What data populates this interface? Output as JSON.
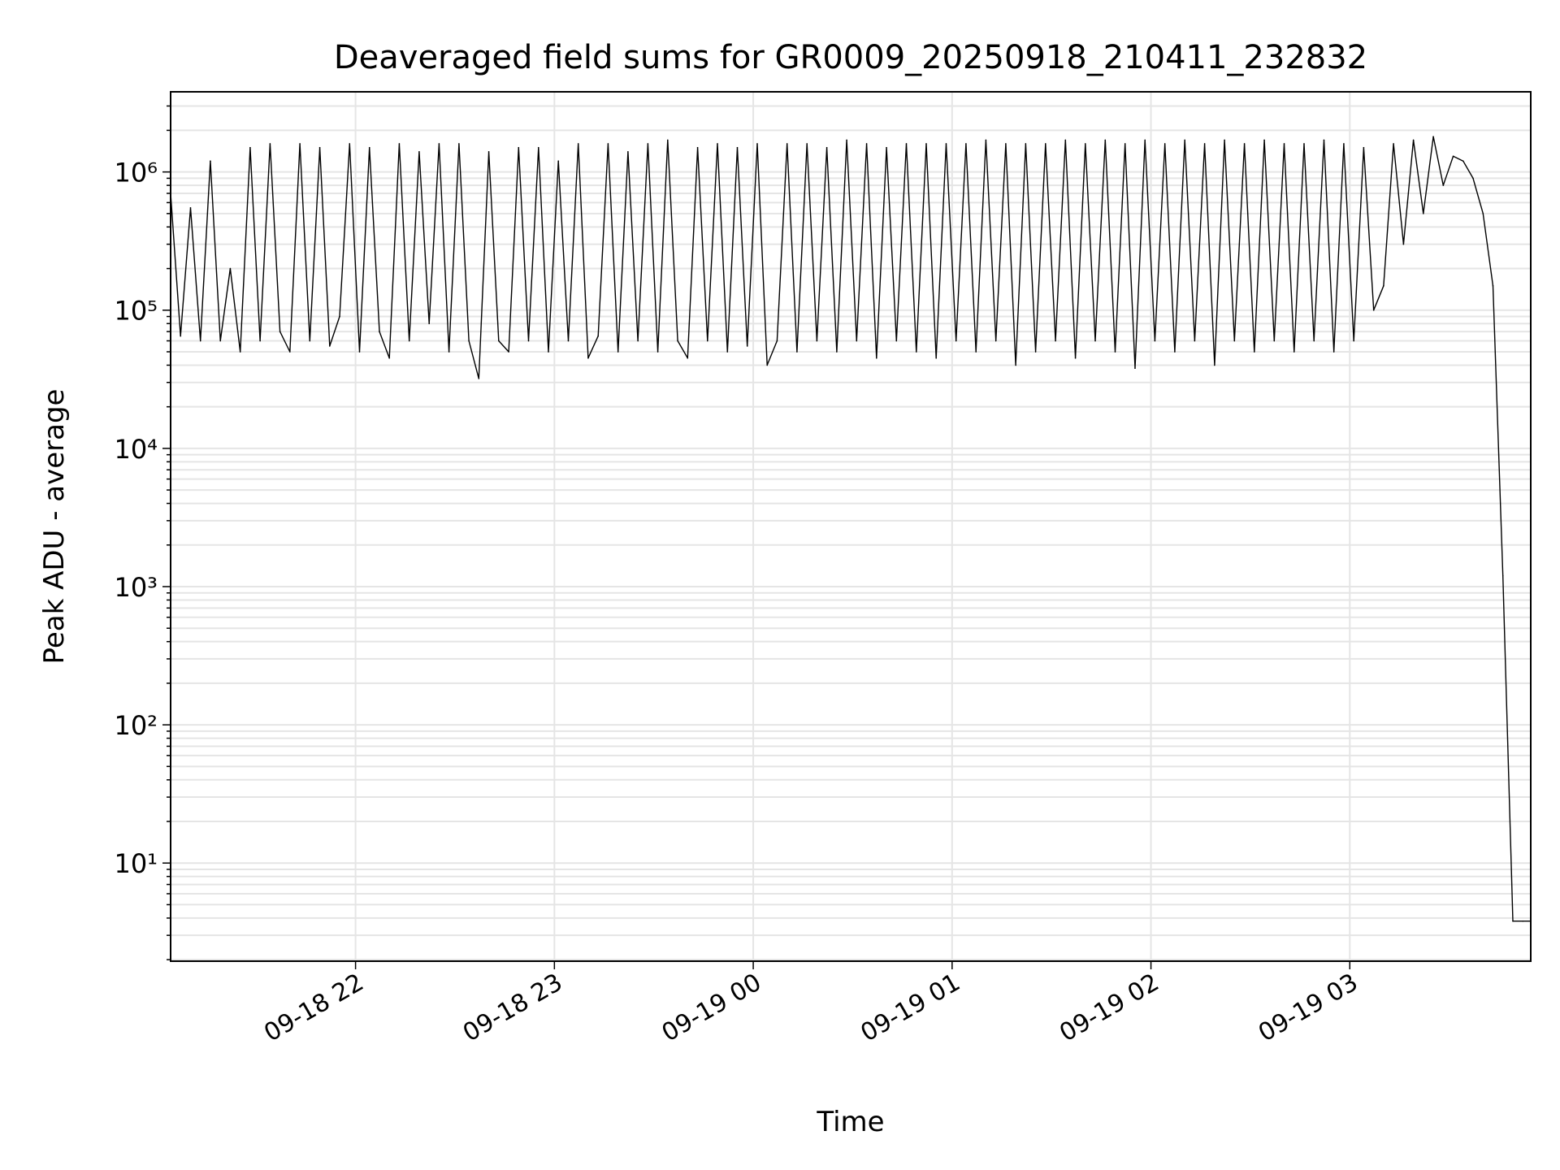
{
  "chart_data": {
    "type": "line",
    "title": "Deaveraged field sums for GR0009_20250918_210411_232832",
    "xlabel": "Time",
    "ylabel": "Peak ADU - average",
    "x_units": "hours since 2025-09-18 00:00",
    "xlim": [
      21.07,
      27.91
    ],
    "yscale": "log",
    "ylim": [
      1.95,
      3800000
    ],
    "grid": true,
    "line_color": "#000000",
    "grid_color": "#e5e5e5",
    "x_ticks": [
      22,
      23,
      24,
      25,
      26,
      27
    ],
    "x_tick_labels": [
      "09-18 22",
      "09-18 23",
      "09-19 00",
      "09-19 01",
      "09-19 02",
      "09-19 03"
    ],
    "y_ticks": [
      10,
      100,
      1000,
      10000,
      100000,
      1000000
    ],
    "y_tick_labels": [
      "10¹",
      "10²",
      "10³",
      "10⁴",
      "10⁵",
      "10⁶"
    ],
    "series": [
      {
        "name": "deaveraged field sum",
        "x_start": 21.07,
        "x_step": 0.05,
        "values": [
          700000.0,
          65000.0,
          550000.0,
          60000.0,
          1200000.0,
          60000.0,
          200000.0,
          50000.0,
          1500000.0,
          60000.0,
          1600000.0,
          70000.0,
          50000.0,
          1600000.0,
          60000.0,
          1500000.0,
          55000.0,
          90000.0,
          1600000.0,
          50000.0,
          1500000.0,
          70000.0,
          45000.0,
          1600000.0,
          60000.0,
          1400000.0,
          80000.0,
          1600000.0,
          50000.0,
          1600000.0,
          60000.0,
          32000.0,
          1400000.0,
          60000.0,
          50000.0,
          1500000.0,
          60000.0,
          1500000.0,
          50000.0,
          1200000.0,
          60000.0,
          1600000.0,
          45000.0,
          65000.0,
          1600000.0,
          50000.0,
          1400000.0,
          60000.0,
          1600000.0,
          50000.0,
          1700000.0,
          60000.0,
          45000.0,
          1500000.0,
          60000.0,
          1600000.0,
          50000.0,
          1500000.0,
          55000.0,
          1600000.0,
          40000.0,
          60000.0,
          1600000.0,
          50000.0,
          1600000.0,
          60000.0,
          1500000.0,
          50000.0,
          1700000.0,
          60000.0,
          1600000.0,
          45000.0,
          1500000.0,
          60000.0,
          1600000.0,
          50000.0,
          1600000.0,
          45000.0,
          1600000.0,
          60000.0,
          1600000.0,
          50000.0,
          1700000.0,
          60000.0,
          1600000.0,
          40000.0,
          1600000.0,
          50000.0,
          1600000.0,
          60000.0,
          1700000.0,
          45000.0,
          1600000.0,
          60000.0,
          1700000.0,
          50000.0,
          1600000.0,
          38000.0,
          1700000.0,
          60000.0,
          1600000.0,
          50000.0,
          1700000.0,
          60000.0,
          1600000.0,
          40000.0,
          1700000.0,
          60000.0,
          1600000.0,
          50000.0,
          1700000.0,
          60000.0,
          1600000.0,
          50000.0,
          1600000.0,
          60000.0,
          1700000.0,
          50000.0,
          1600000.0,
          60000.0,
          1500000.0,
          100000.0,
          150000.0,
          1600000.0,
          300000.0,
          1700000.0,
          500000.0,
          1800000.0,
          800000.0,
          1300000.0,
          1200000.0,
          900000.0,
          500000.0,
          150000.0,
          1200.0,
          3.8,
          3.8
        ]
      }
    ]
  }
}
